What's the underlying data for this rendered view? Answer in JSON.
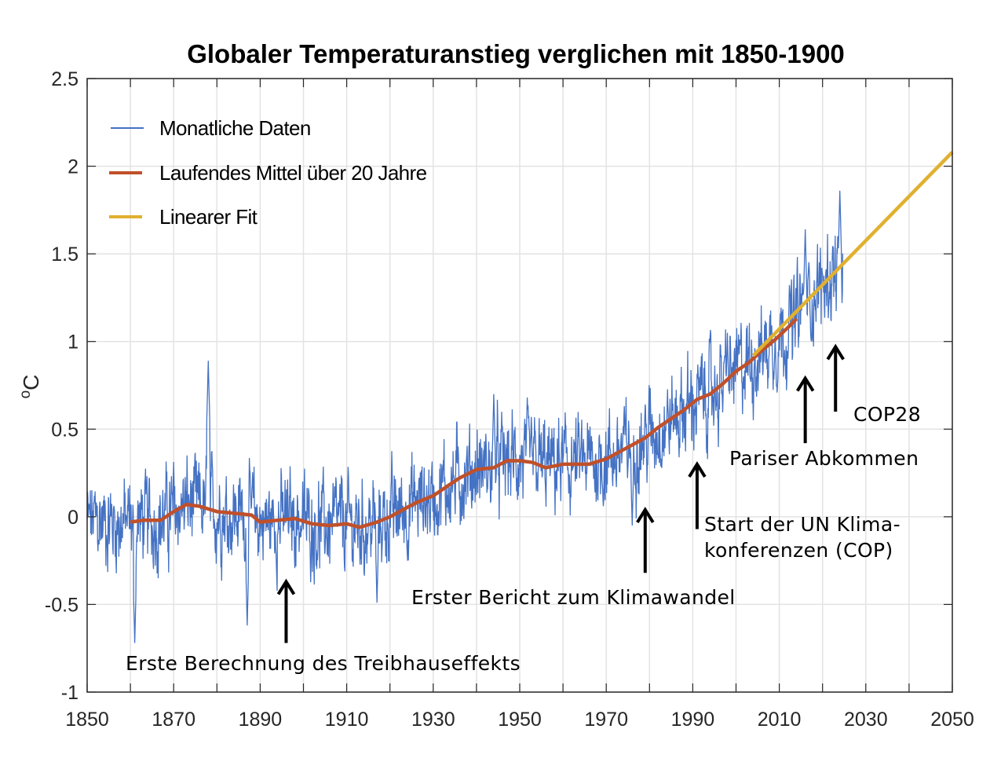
{
  "chart_data": {
    "type": "line",
    "title": "Globaler Temperaturanstieg verglichen mit 1850-1900",
    "xlabel": "",
    "ylabel": "°C",
    "ylabel_parts": {
      "degree": "o",
      "unit": "C"
    },
    "xlim": [
      1850,
      2050
    ],
    "ylim": [
      -1,
      2.5
    ],
    "grid": true,
    "x_ticks": [
      1850,
      1870,
      1890,
      1910,
      1930,
      1950,
      1970,
      1990,
      2010,
      2030,
      2050
    ],
    "x_minor_ticks": [
      1860,
      1880,
      1900,
      1920,
      1940,
      1960,
      1980,
      2000,
      2020,
      2040
    ],
    "y_ticks": [
      -1,
      -0.5,
      0,
      0.5,
      1,
      1.5,
      2,
      2.5
    ],
    "y_tick_labels": [
      "-1",
      "-0.5",
      "0",
      "0.5",
      "1",
      "1.5",
      "2",
      "2.5"
    ],
    "legend_position": "top-left",
    "series": [
      {
        "name": "Monatliche Daten",
        "color": "#4472c4",
        "kind": "monthly-noisy",
        "x_range": [
          1850,
          2024
        ],
        "approx_peaks": [
          {
            "x": 1878,
            "y": 0.89
          },
          {
            "x": 1944,
            "y": 0.7
          },
          {
            "x": 1998,
            "y": 1.05
          },
          {
            "x": 2016,
            "y": 1.64
          },
          {
            "x": 2024,
            "y": 1.86
          }
        ],
        "approx_troughs": [
          {
            "x": 1861,
            "y": -0.72
          },
          {
            "x": 1887,
            "y": -0.62
          },
          {
            "x": 1917,
            "y": -0.49
          },
          {
            "x": 1976,
            "y": -0.05
          }
        ],
        "noise_amplitude": 0.22
      },
      {
        "name": "Laufendes Mittel über 20 Jahre",
        "color": "#c0502a",
        "x": [
          1860,
          1863,
          1867,
          1870,
          1873,
          1876,
          1880,
          1884,
          1888,
          1890,
          1894,
          1898,
          1902,
          1906,
          1910,
          1913,
          1917,
          1920,
          1923,
          1926,
          1930,
          1933,
          1936,
          1940,
          1944,
          1947,
          1950,
          1953,
          1956,
          1960,
          1963,
          1966,
          1970,
          1973,
          1976,
          1979,
          1982,
          1985,
          1988,
          1991,
          1994,
          1997,
          2000,
          2003,
          2006,
          2009,
          2012,
          2014
        ],
        "values": [
          -0.03,
          -0.02,
          -0.02,
          0.03,
          0.07,
          0.06,
          0.03,
          0.02,
          0.01,
          -0.03,
          -0.02,
          -0.01,
          -0.04,
          -0.05,
          -0.04,
          -0.06,
          -0.03,
          0.0,
          0.04,
          0.08,
          0.12,
          0.17,
          0.22,
          0.27,
          0.28,
          0.32,
          0.32,
          0.31,
          0.28,
          0.3,
          0.3,
          0.3,
          0.33,
          0.37,
          0.41,
          0.45,
          0.51,
          0.56,
          0.61,
          0.67,
          0.7,
          0.76,
          0.83,
          0.88,
          0.95,
          1.01,
          1.08,
          1.13
        ]
      },
      {
        "name": "Linearer Fit",
        "color": "#e0b030",
        "x": [
          2004,
          2050
        ],
        "values": [
          0.92,
          2.08
        ]
      }
    ],
    "annotations": [
      {
        "name": "treibhauseffekt",
        "lines": [
          "Erste Berechnung des Treibhauseffekts"
        ],
        "arrow_x": 1896,
        "arrow_y_from": -0.72,
        "arrow_y_to": -0.37
      },
      {
        "name": "erster-bericht",
        "lines": [
          "Erster Bericht zum Klimawandel"
        ],
        "arrow_x": 1979,
        "arrow_y_from": -0.32,
        "arrow_y_to": 0.04
      },
      {
        "name": "un-klimakonferenzen",
        "lines": [
          "Start der UN Klima-",
          "konferenzen (COP)"
        ],
        "arrow_x": 1991,
        "arrow_y_from": -0.07,
        "arrow_y_to": 0.3
      },
      {
        "name": "pariser-abkommen",
        "lines": [
          "Pariser Abkommen"
        ],
        "arrow_x": 2016,
        "arrow_y_from": 0.42,
        "arrow_y_to": 0.79
      },
      {
        "name": "cop28",
        "lines": [
          "COP28"
        ],
        "arrow_x": 2023,
        "arrow_y_from": 0.6,
        "arrow_y_to": 0.97
      }
    ]
  }
}
